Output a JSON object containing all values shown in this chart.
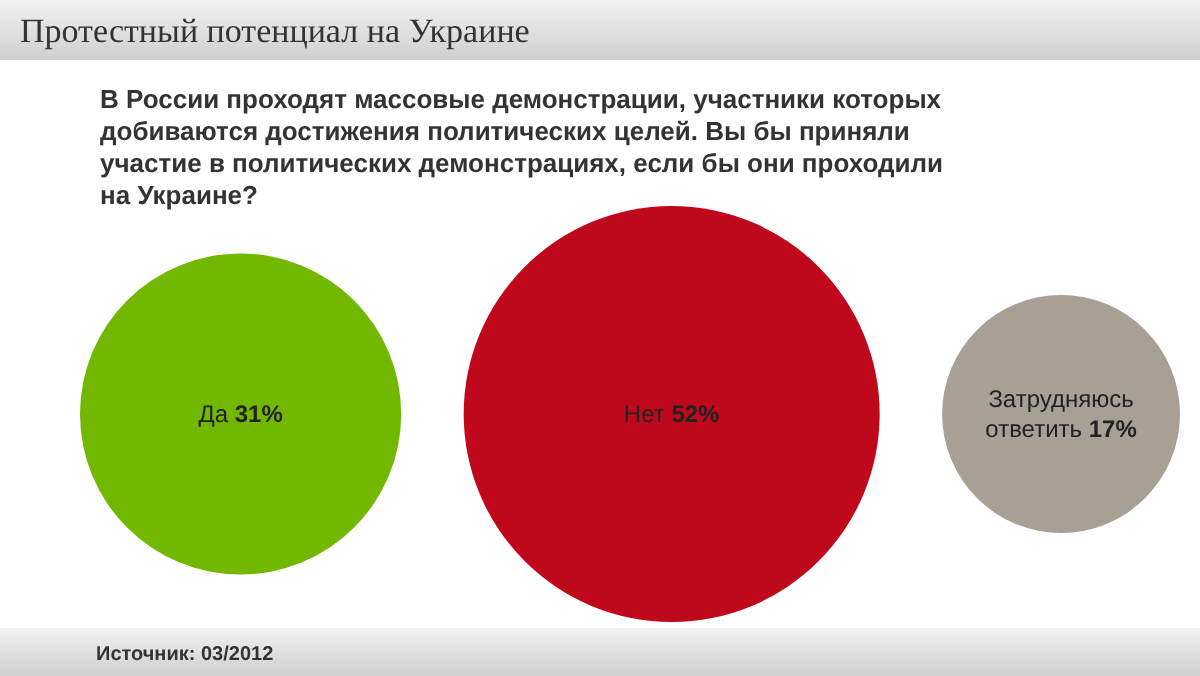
{
  "chart_data": {
    "type": "other",
    "title": "Протестный потенциал на Украине",
    "subtitle": "В России проходят массовые демонстрации, участники которых добиваются достижения политических целей. Вы бы приняли участие в политических демонстрациях, если бы они проходили на Украине?",
    "categories": [
      "Да",
      "Нет",
      "Затрудняюсь ответить"
    ],
    "values": [
      31,
      52,
      17
    ],
    "value_labels": [
      "31%",
      "52%",
      "17%"
    ],
    "colors": [
      "#72b800",
      "#c0081c",
      "#a8a095"
    ],
    "annotations": [
      "Источник: 03/2012"
    ]
  }
}
